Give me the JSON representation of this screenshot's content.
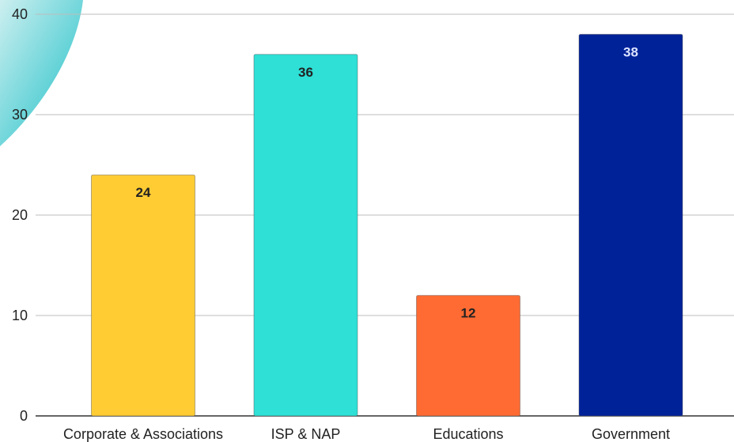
{
  "chart_data": {
    "type": "bar",
    "categories": [
      "Corporate & Associations",
      "ISP & NAP",
      "Educations",
      "Government"
    ],
    "values": [
      24,
      36,
      12,
      38
    ],
    "bar_colors": [
      "#FFCC33",
      "#2EE0D6",
      "#FF6B33",
      "#002299"
    ],
    "value_label_colors": [
      "#222222",
      "#222222",
      "#222222",
      "#dde4ff"
    ],
    "y_ticks": [
      "0",
      "10",
      "20",
      "30",
      "40"
    ],
    "ylim": [
      0,
      40
    ],
    "title": "",
    "xlabel": "",
    "ylabel": "",
    "grid": true,
    "legend": "none",
    "data_labels": [
      "24",
      "36",
      "12",
      "38"
    ]
  },
  "decoration": {
    "corner_shape_color_light": "#cdeff0",
    "corner_shape_color_dark": "#19bfc6"
  }
}
